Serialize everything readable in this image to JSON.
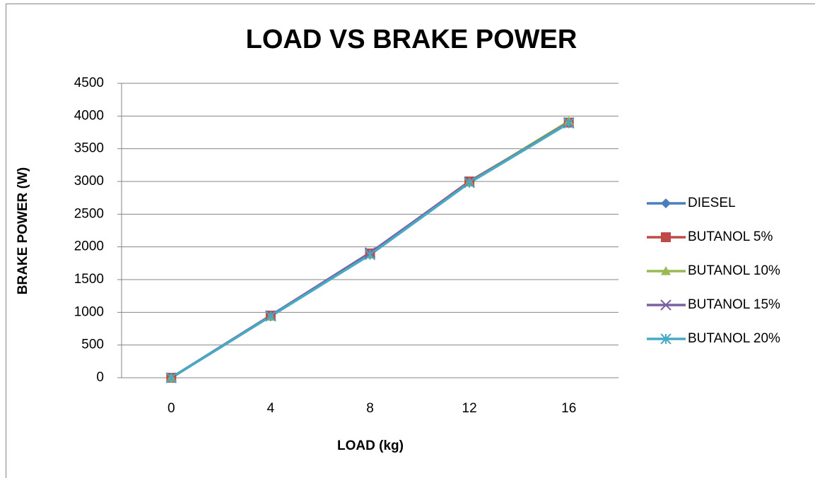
{
  "chart_data": {
    "type": "line",
    "title": "LOAD VS BRAKE POWER",
    "x_label": "LOAD (kg)",
    "y_label": "BRAKE POWER (W)",
    "categories": [
      "0",
      "4",
      "8",
      "12",
      "16"
    ],
    "series": [
      {
        "name": "DIESEL",
        "color": "#4a7ebb",
        "marker": "diamond",
        "values": [
          0,
          950,
          1900,
          3000,
          3900
        ]
      },
      {
        "name": "BUTANOL 5%",
        "color": "#be4b48",
        "marker": "square",
        "values": [
          0,
          950,
          1900,
          3000,
          3900
        ]
      },
      {
        "name": "BUTANOL 10%",
        "color": "#98b954",
        "marker": "triangle",
        "values": [
          0,
          940,
          1890,
          2990,
          3920
        ]
      },
      {
        "name": "BUTANOL 15%",
        "color": "#7d60a0",
        "marker": "x",
        "values": [
          0,
          950,
          1910,
          2990,
          3900
        ]
      },
      {
        "name": "BUTANOL 20%",
        "color": "#46aac5",
        "marker": "star",
        "values": [
          0,
          940,
          1880,
          2980,
          3890
        ]
      }
    ],
    "ylim": [
      0,
      4500
    ],
    "yticks": [
      0,
      500,
      1000,
      1500,
      2000,
      2500,
      3000,
      3500,
      4000,
      4500
    ],
    "grid": true,
    "legend": "right"
  }
}
